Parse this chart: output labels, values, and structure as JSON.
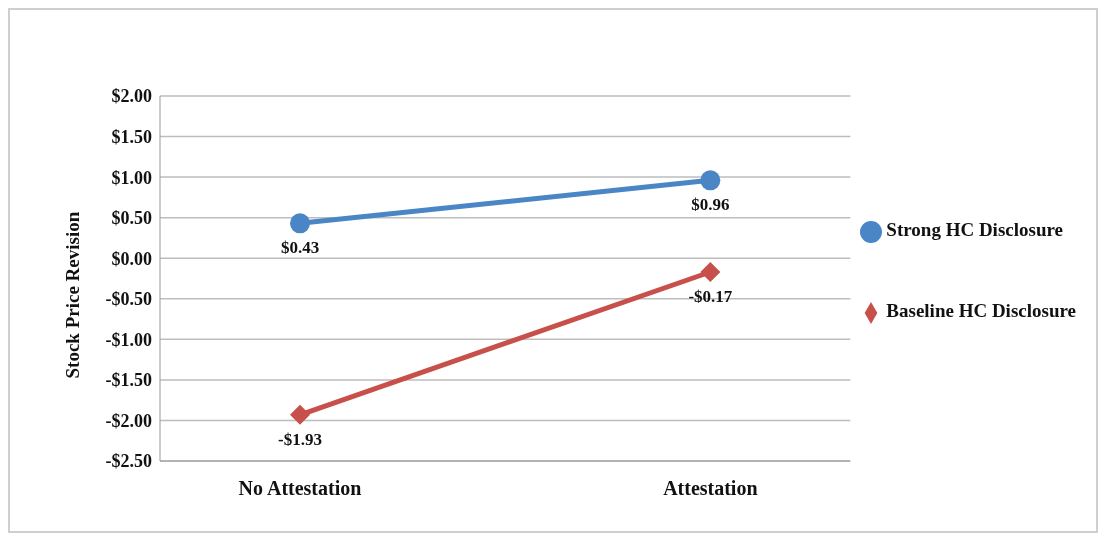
{
  "chart_data": {
    "type": "line",
    "ylabel": "Stock Price Revision",
    "categories": [
      "No Attestation",
      "Attestation"
    ],
    "series": [
      {
        "name": "Strong HC Disclosure",
        "color": "#4a86c6",
        "values": [
          0.43,
          0.96
        ],
        "marker": "circle",
        "value_labels": [
          "$0.43",
          "$0.96"
        ]
      },
      {
        "name": "Baseline HC Disclosure",
        "color": "#c8504a",
        "values": [
          -1.93,
          -0.17
        ],
        "marker": "diamond",
        "value_labels": [
          "-$1.93",
          "-$0.17"
        ]
      }
    ],
    "ylim": [
      -2.5,
      2
    ],
    "yticks": [
      {
        "value": -2.5,
        "label": "-$2.50"
      },
      {
        "value": -2,
        "label": "-$2.00"
      },
      {
        "value": -1.5,
        "label": "-$1.50"
      },
      {
        "value": -1,
        "label": "-$1.00"
      },
      {
        "value": -0.5,
        "label": "-$0.50"
      },
      {
        "value": 0,
        "label": "$0.00"
      },
      {
        "value": 0.5,
        "label": "$0.50"
      },
      {
        "value": 1,
        "label": "$1.00"
      },
      {
        "value": 1.5,
        "label": "$1.50"
      },
      {
        "value": 2,
        "label": "$2.00"
      }
    ],
    "grid": "y",
    "legend": "right"
  }
}
